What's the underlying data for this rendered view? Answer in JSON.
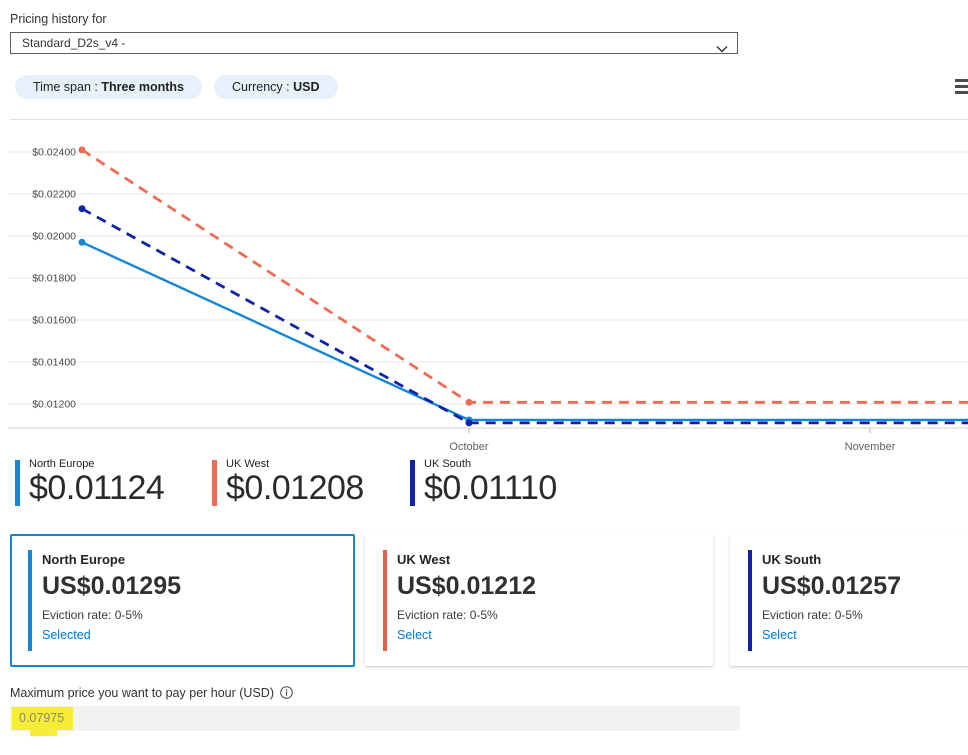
{
  "header": {
    "label": "Pricing history for",
    "dropdown_value": "Standard_D2s_v4 -"
  },
  "filters": {
    "time_span_label": "Time span : ",
    "time_span_value": "Three months",
    "currency_label": "Currency : ",
    "currency_value": "USD"
  },
  "icons": {
    "dropdown": "chevron-down-icon",
    "menu": "hamburger-menu-icon",
    "info": "info-icon"
  },
  "chart_data": {
    "type": "line",
    "x_tick_labels": [
      "October",
      "November"
    ],
    "y_tick_labels": [
      "$0.02400",
      "$0.02200",
      "$0.02000",
      "$0.01800",
      "$0.01600",
      "$0.01400",
      "$0.01200"
    ],
    "y_gridline_values": [
      0.024,
      0.022,
      0.02,
      0.018,
      0.016,
      0.014,
      0.012
    ],
    "ylim": [
      0.0108,
      0.0249
    ],
    "grid": true,
    "legend_position": "below",
    "series": [
      {
        "name": "North Europe",
        "color": "#1585d5",
        "style": "solid",
        "points": [
          {
            "x": "early September",
            "y": 0.0197
          },
          {
            "x": "October",
            "y": 0.01124
          },
          {
            "x": "mid November",
            "y": 0.01124
          }
        ]
      },
      {
        "name": "UK West",
        "color": "#ec6c55",
        "style": "dashed",
        "points": [
          {
            "x": "early September",
            "y": 0.0241
          },
          {
            "x": "October",
            "y": 0.01208
          },
          {
            "x": "mid November",
            "y": 0.01208
          }
        ]
      },
      {
        "name": "UK South",
        "color": "#0f23a8",
        "style": "dashed",
        "points": [
          {
            "x": "early September",
            "y": 0.0213
          },
          {
            "x": "October",
            "y": 0.0111
          },
          {
            "x": "mid November",
            "y": 0.0111
          }
        ]
      }
    ]
  },
  "legend": {
    "items": [
      {
        "label": "North Europe",
        "value": "$0.01124",
        "color": "#1585d5"
      },
      {
        "label": "UK West",
        "value": "$0.01208",
        "color": "#ec6c55"
      },
      {
        "label": "UK South",
        "value": "$0.01110",
        "color": "#0f23a8"
      }
    ]
  },
  "cards": [
    {
      "region": "North Europe",
      "price": "US$0.01295",
      "eviction": "Eviction rate: 0-5%",
      "action": "Selected",
      "selected": true,
      "accent": "#1585d5"
    },
    {
      "region": "UK West",
      "price": "US$0.01212",
      "eviction": "Eviction rate: 0-5%",
      "action": "Select",
      "selected": false,
      "accent": "#e8604c"
    },
    {
      "region": "UK South",
      "price": "US$0.01257",
      "eviction": "Eviction rate: 0-5%",
      "action": "Select",
      "selected": false,
      "accent": "#0f23a8"
    }
  ],
  "max_price": {
    "label": "Maximum price you want to pay per hour (USD)",
    "value": "0.07975"
  },
  "theme": {
    "link_blue": "#0078d4",
    "selected_border": "#1086d8",
    "highlight_yellow": "#f7ec37",
    "pill_bg": "#e6f1fb",
    "input_bg": "#f3f2f1"
  }
}
